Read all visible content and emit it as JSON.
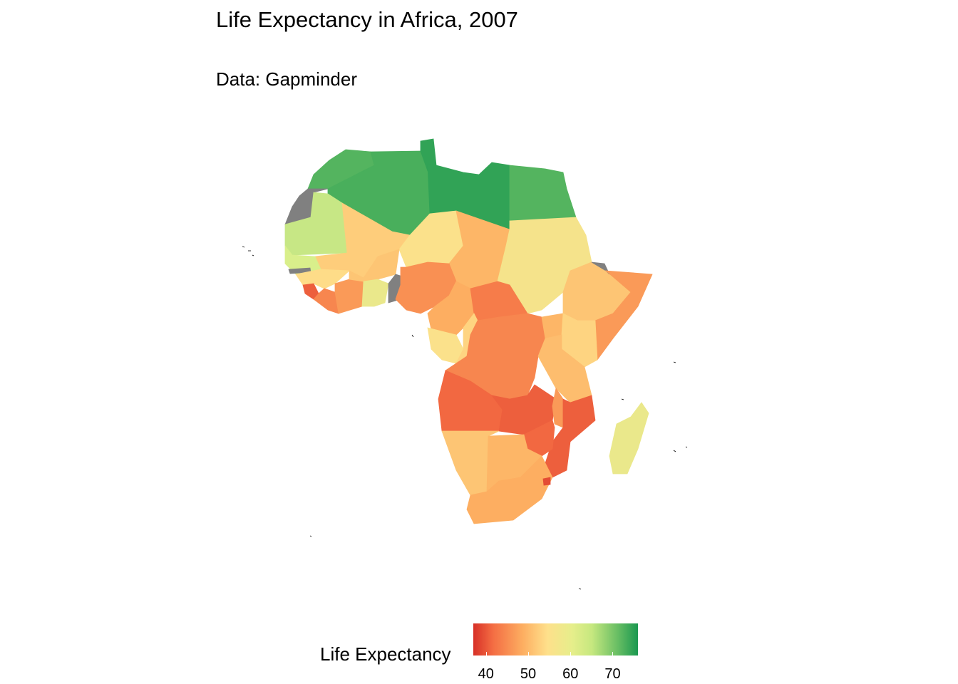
{
  "title": "Life Expectancy in Africa, 2007",
  "subtitle": "Data: Gapminder",
  "legend": {
    "title": "Life Expectancy",
    "ticks": [
      "40",
      "50",
      "60",
      "70"
    ],
    "range": [
      37,
      76
    ],
    "colors": [
      "#d73027",
      "#f46d43",
      "#fdae61",
      "#fee08b",
      "#d9ef8b",
      "#66bd63",
      "#1a9850"
    ]
  },
  "map": {
    "missing_color": "#808080",
    "regions": [
      {
        "name": "Morocco",
        "value": 71
      },
      {
        "name": "Western Sahara",
        "value": null
      },
      {
        "name": "Algeria",
        "value": 72
      },
      {
        "name": "Tunisia",
        "value": 74
      },
      {
        "name": "Libya",
        "value": 74
      },
      {
        "name": "Egypt",
        "value": 71
      },
      {
        "name": "Mauritania",
        "value": 64
      },
      {
        "name": "Mali",
        "value": 54
      },
      {
        "name": "Niger",
        "value": 57
      },
      {
        "name": "Chad",
        "value": 51
      },
      {
        "name": "Sudan",
        "value": 58
      },
      {
        "name": "Senegal",
        "value": 63
      },
      {
        "name": "Guinea",
        "value": 56
      },
      {
        "name": "Sierra Leone",
        "value": 42
      },
      {
        "name": "Liberia",
        "value": 46
      },
      {
        "name": "Cote d'Ivoire",
        "value": 48
      },
      {
        "name": "Burkina Faso",
        "value": 53
      },
      {
        "name": "Ghana",
        "value": 60
      },
      {
        "name": "Nigeria",
        "value": 47
      },
      {
        "name": "Cameroon",
        "value": 50
      },
      {
        "name": "Central African Republic",
        "value": 45
      },
      {
        "name": "Ethiopia",
        "value": 53
      },
      {
        "name": "Somalia",
        "value": 48
      },
      {
        "name": "Gabon",
        "value": 57
      },
      {
        "name": "Congo",
        "value": 55
      },
      {
        "name": "Dem. Rep. Congo",
        "value": 46
      },
      {
        "name": "Uganda",
        "value": 51
      },
      {
        "name": "Kenya",
        "value": 55
      },
      {
        "name": "Tanzania",
        "value": 52
      },
      {
        "name": "Angola",
        "value": 43
      },
      {
        "name": "Zambia",
        "value": 42
      },
      {
        "name": "Malawi",
        "value": 48
      },
      {
        "name": "Mozambique",
        "value": 42
      },
      {
        "name": "Zimbabwe",
        "value": 43
      },
      {
        "name": "Namibia",
        "value": 53
      },
      {
        "name": "Botswana",
        "value": 51
      },
      {
        "name": "South Africa",
        "value": 50
      },
      {
        "name": "Swaziland",
        "value": 40
      },
      {
        "name": "Madagascar",
        "value": 60
      }
    ]
  }
}
